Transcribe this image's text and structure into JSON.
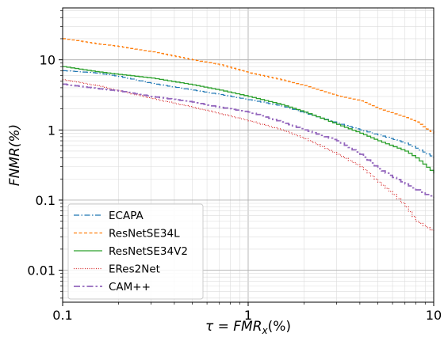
{
  "chart_data": {
    "type": "line",
    "title": "",
    "xlabel": "τ = FMR_x(%)",
    "xlabel_parts": {
      "lhs": "τ",
      "eq": " = ",
      "main": "FMR",
      "sub": "x",
      "unit": "(%)"
    },
    "ylabel": "FNMR(%)",
    "xscale": "log",
    "yscale": "log",
    "xlim": [
      0.1,
      10
    ],
    "ylim": [
      0.0035,
      55
    ],
    "xticks": [
      {
        "value": 0.1,
        "label": "0.1"
      },
      {
        "value": 1,
        "label": "1"
      },
      {
        "value": 10,
        "label": "10"
      }
    ],
    "yticks": [
      {
        "value": 0.01,
        "label": "0.01"
      },
      {
        "value": 0.1,
        "label": "0.1"
      },
      {
        "value": 1,
        "label": "1"
      },
      {
        "value": 10,
        "label": "10"
      }
    ],
    "grid": true,
    "legend_position": "lower-left",
    "series": [
      {
        "name": "ECAPA",
        "color": "#1f77b4",
        "dash": "dashdot",
        "x": [
          0.1,
          0.15,
          0.2,
          0.3,
          0.5,
          0.7,
          1,
          1.5,
          2,
          3,
          4,
          5,
          7,
          8,
          10
        ],
        "y": [
          7.0,
          6.5,
          5.8,
          4.6,
          3.7,
          3.2,
          2.7,
          2.2,
          1.75,
          1.25,
          1.0,
          0.85,
          0.65,
          0.55,
          0.4
        ]
      },
      {
        "name": "ResNetSE34L",
        "color": "#ff7f0e",
        "dash": "dashed",
        "x": [
          0.1,
          0.15,
          0.2,
          0.3,
          0.5,
          0.7,
          1,
          1.5,
          2,
          3,
          4,
          5,
          7,
          8,
          10
        ],
        "y": [
          20.0,
          17.0,
          15.5,
          13.0,
          10.0,
          8.5,
          6.5,
          5.2,
          4.3,
          3.1,
          2.6,
          2.0,
          1.5,
          1.3,
          0.88
        ]
      },
      {
        "name": "ResNetSE34V2",
        "color": "#2ca02c",
        "dash": "solid",
        "x": [
          0.1,
          0.15,
          0.2,
          0.3,
          0.5,
          0.7,
          1,
          1.5,
          2,
          3,
          4,
          5,
          7,
          8,
          10
        ],
        "y": [
          8.0,
          6.8,
          6.2,
          5.5,
          4.4,
          3.7,
          3.0,
          2.3,
          1.8,
          1.2,
          0.9,
          0.7,
          0.5,
          0.4,
          0.24
        ]
      },
      {
        "name": "ERes2Net",
        "color": "#d62728",
        "dash": "dotted",
        "x": [
          0.1,
          0.15,
          0.2,
          0.3,
          0.5,
          0.7,
          1,
          1.5,
          2,
          3,
          4,
          5,
          6,
          7,
          8,
          10
        ],
        "y": [
          5.2,
          4.3,
          3.6,
          2.8,
          2.1,
          1.7,
          1.35,
          1.0,
          0.75,
          0.45,
          0.3,
          0.18,
          0.12,
          0.08,
          0.05,
          0.035
        ]
      },
      {
        "name": "CAM++",
        "color": "#9467bd",
        "dash": "dashdot-thick",
        "x": [
          0.1,
          0.15,
          0.2,
          0.3,
          0.5,
          0.7,
          1,
          1.5,
          2,
          3,
          4,
          5,
          6,
          7,
          8,
          9,
          10
        ],
        "y": [
          4.5,
          3.9,
          3.6,
          3.0,
          2.5,
          2.1,
          1.8,
          1.3,
          1.0,
          0.7,
          0.45,
          0.28,
          0.21,
          0.17,
          0.14,
          0.12,
          0.11
        ]
      }
    ]
  }
}
